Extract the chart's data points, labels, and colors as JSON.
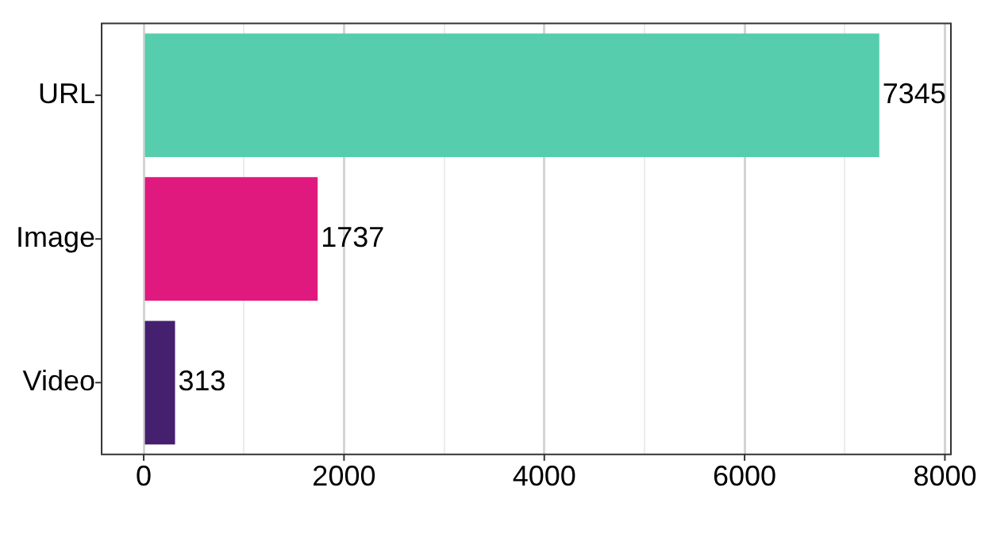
{
  "chart_data": {
    "type": "bar",
    "orientation": "horizontal",
    "categories": [
      "URL",
      "Image",
      "Video"
    ],
    "values": [
      7345,
      1737,
      313
    ],
    "colors": [
      "#56cdad",
      "#e0197f",
      "#44206f"
    ],
    "xlim": [
      -420,
      8060
    ],
    "xticks": [
      0,
      {
        "value": 1000,
        "label": null
      },
      2000,
      {
        "value": 3000,
        "label": null
      },
      4000,
      {
        "value": 5000,
        "label": null
      },
      6000,
      {
        "value": 7000,
        "label": null
      },
      8000
    ],
    "grid": "x",
    "data_labels": true,
    "legend": false
  }
}
